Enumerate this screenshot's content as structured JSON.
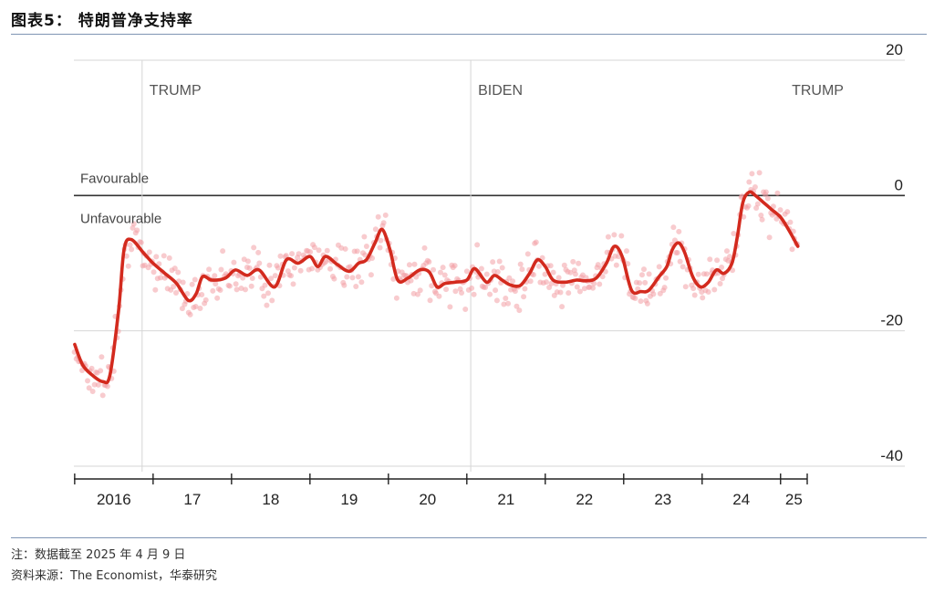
{
  "figure": {
    "title": "图表5： 特朗普净支持率",
    "note": "注：数据截至 2025 年 4 月 9 日",
    "source": "资料来源：The Economist，华泰研究"
  },
  "colors": {
    "line": "#d32a1e",
    "dots": "#f2a0a6",
    "grid": "#d6d6d6",
    "zero": "#333333",
    "rule": "#7f95b4"
  },
  "chart_data": {
    "type": "line",
    "y_ticks": [
      20,
      0,
      -20,
      -40
    ],
    "ylim": [
      -40,
      20
    ],
    "x_ticks": [
      "2016",
      "17",
      "18",
      "19",
      "20",
      "21",
      "22",
      "23",
      "24",
      "25"
    ],
    "xlim": [
      2015.99,
      2025.34
    ],
    "zero_labels": {
      "above": "Favourable",
      "below": "Unfavourable"
    },
    "terms": [
      {
        "label": "TRUMP",
        "start": 2016.86
      },
      {
        "label": "BIDEN",
        "start": 2021.05
      },
      {
        "label": "TRUMP",
        "start": 2025.05
      }
    ],
    "grid": true,
    "series": [
      {
        "kind": "smoothed",
        "points": [
          [
            2016.0,
            -22
          ],
          [
            2016.1,
            -25
          ],
          [
            2016.22,
            -26.5
          ],
          [
            2016.36,
            -27.5
          ],
          [
            2016.45,
            -26.5
          ],
          [
            2016.56,
            -17
          ],
          [
            2016.63,
            -8
          ],
          [
            2016.72,
            -6.5
          ],
          [
            2016.88,
            -8.5
          ],
          [
            2017.0,
            -10
          ],
          [
            2017.15,
            -11.5
          ],
          [
            2017.3,
            -13
          ],
          [
            2017.45,
            -15.5
          ],
          [
            2017.55,
            -14.5
          ],
          [
            2017.63,
            -12
          ],
          [
            2017.75,
            -12.5
          ],
          [
            2017.92,
            -12.2
          ],
          [
            2018.05,
            -11
          ],
          [
            2018.2,
            -11.8
          ],
          [
            2018.35,
            -11
          ],
          [
            2018.55,
            -13.5
          ],
          [
            2018.7,
            -9.5
          ],
          [
            2018.85,
            -10
          ],
          [
            2019.0,
            -9
          ],
          [
            2019.1,
            -10.5
          ],
          [
            2019.2,
            -9
          ],
          [
            2019.35,
            -10.2
          ],
          [
            2019.5,
            -11.2
          ],
          [
            2019.62,
            -10
          ],
          [
            2019.72,
            -9.5
          ],
          [
            2019.83,
            -7
          ],
          [
            2019.92,
            -5
          ],
          [
            2020.02,
            -8
          ],
          [
            2020.12,
            -12.5
          ],
          [
            2020.25,
            -12.2
          ],
          [
            2020.4,
            -11
          ],
          [
            2020.52,
            -11.3
          ],
          [
            2020.62,
            -13.5
          ],
          [
            2020.72,
            -13
          ],
          [
            2020.85,
            -12.8
          ],
          [
            2021.0,
            -12.5
          ],
          [
            2021.1,
            -10.8
          ],
          [
            2021.25,
            -12.8
          ],
          [
            2021.35,
            -11.8
          ],
          [
            2021.45,
            -12.5
          ],
          [
            2021.55,
            -13.2
          ],
          [
            2021.68,
            -13.3
          ],
          [
            2021.8,
            -11.5
          ],
          [
            2021.9,
            -9.5
          ],
          [
            2022.0,
            -10.5
          ],
          [
            2022.1,
            -12.5
          ],
          [
            2022.25,
            -12.8
          ],
          [
            2022.4,
            -12.5
          ],
          [
            2022.52,
            -12.6
          ],
          [
            2022.65,
            -12.2
          ],
          [
            2022.78,
            -10
          ],
          [
            2022.88,
            -7.5
          ],
          [
            2022.98,
            -9
          ],
          [
            2023.1,
            -14
          ],
          [
            2023.22,
            -14.2
          ],
          [
            2023.32,
            -14
          ],
          [
            2023.45,
            -12
          ],
          [
            2023.55,
            -10.5
          ],
          [
            2023.62,
            -8
          ],
          [
            2023.7,
            -7
          ],
          [
            2023.78,
            -8.5
          ],
          [
            2023.88,
            -12
          ],
          [
            2023.98,
            -13.5
          ],
          [
            2024.08,
            -12.8
          ],
          [
            2024.18,
            -11
          ],
          [
            2024.28,
            -11.5
          ],
          [
            2024.38,
            -10
          ],
          [
            2024.45,
            -6
          ],
          [
            2024.52,
            -1
          ],
          [
            2024.6,
            0.5
          ],
          [
            2024.68,
            0
          ],
          [
            2024.78,
            -1
          ],
          [
            2024.88,
            -2
          ],
          [
            2025.0,
            -3.2
          ],
          [
            2025.1,
            -5
          ],
          [
            2025.22,
            -7.5
          ]
        ]
      }
    ]
  }
}
